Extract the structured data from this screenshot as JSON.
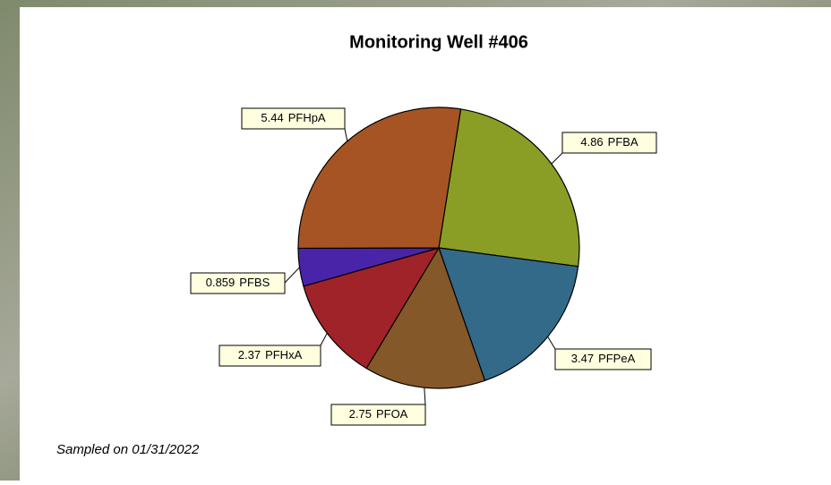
{
  "chart_data": {
    "type": "pie",
    "title": "Monitoring Well #406",
    "annotation": "Sampled on 01/31/2022",
    "categories": [
      "PFBA",
      "PFPeA",
      "PFOA",
      "PFHxA",
      "PFBS",
      "PFHpA"
    ],
    "values": [
      4.86,
      3.47,
      2.75,
      2.37,
      0.859,
      5.44
    ],
    "colors": [
      "#8a9e25",
      "#336a8a",
      "#855829",
      "#a0232a",
      "#4a24a8",
      "#a65424"
    ]
  }
}
